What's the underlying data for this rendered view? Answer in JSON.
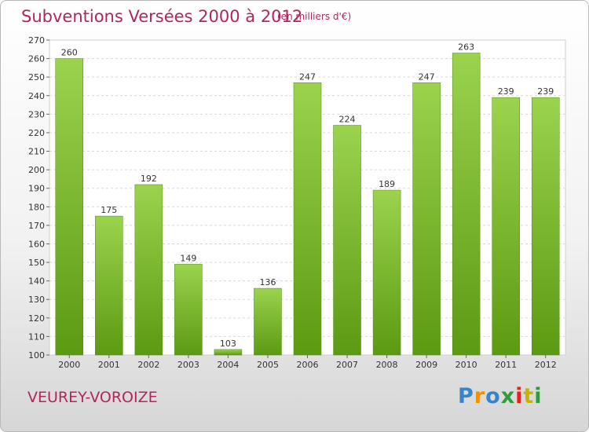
{
  "header": {
    "title": "Subventions Versées 2000 à 2012",
    "subtitle": "(en milliers d'€)"
  },
  "footer": {
    "location": "VEUREY-VOROIZE",
    "logo": "Proxiti"
  },
  "colors": {
    "title": "#b0265e",
    "bar_light": "#9bd34d",
    "bar_dark": "#5c9a12",
    "grid": "#d9d9d9"
  },
  "chart_data": {
    "type": "bar",
    "title": "Subventions Versées 2000 à 2012",
    "subtitle": "(en milliers d'€)",
    "categories": [
      "2000",
      "2001",
      "2002",
      "2003",
      "2004",
      "2005",
      "2006",
      "2007",
      "2008",
      "2009",
      "2010",
      "2011",
      "2012"
    ],
    "values": [
      260,
      175,
      192,
      149,
      103,
      136,
      247,
      224,
      189,
      247,
      263,
      239,
      239
    ],
    "ylim": [
      100,
      270
    ],
    "yticks": [
      100,
      110,
      120,
      130,
      140,
      150,
      160,
      170,
      180,
      190,
      200,
      210,
      220,
      230,
      240,
      250,
      260,
      270
    ],
    "grid": true,
    "data_labels": true,
    "xlabel": "",
    "ylabel": ""
  }
}
